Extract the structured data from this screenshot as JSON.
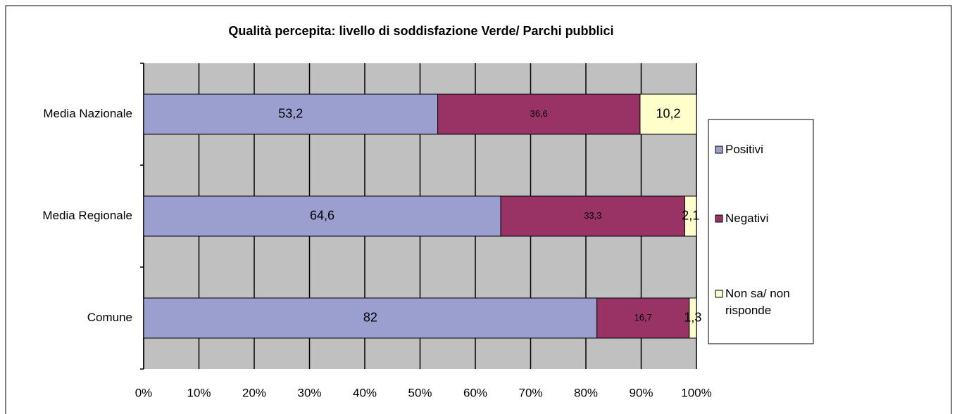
{
  "chart_data": {
    "type": "stacked-barh",
    "title": "Qualità percepita: livello di soddisfazione Verde/ Parchi pubblici",
    "categories": [
      "Media Nazionale",
      "Media Regionale",
      "Comune"
    ],
    "series": [
      {
        "name": "Positivi",
        "color": "#9a9fd0",
        "values": [
          53.2,
          64.6,
          82
        ],
        "value_labels": [
          "53,2",
          "64,6",
          "82"
        ]
      },
      {
        "name": "Negativi",
        "color": "#993366",
        "values": [
          36.6,
          33.3,
          16.7
        ],
        "value_labels": [
          "36,6",
          "33,3",
          "16,7"
        ]
      },
      {
        "name": "Non sa/ non risponde",
        "color": "#ffffcc",
        "values": [
          10.2,
          2.1,
          1.3
        ],
        "value_labels": [
          "10,2",
          "2,1",
          "1,3"
        ]
      }
    ],
    "xlim": [
      0,
      100
    ],
    "xticks": [
      {
        "value": 0,
        "label": "0%"
      },
      {
        "value": 10,
        "label": "10%"
      },
      {
        "value": 20,
        "label": "20%"
      },
      {
        "value": 30,
        "label": "30%"
      },
      {
        "value": 40,
        "label": "40%"
      },
      {
        "value": 50,
        "label": "50%"
      },
      {
        "value": 60,
        "label": "60%"
      },
      {
        "value": 70,
        "label": "70%"
      },
      {
        "value": 80,
        "label": "80%"
      },
      {
        "value": 90,
        "label": "90%"
      },
      {
        "value": 100,
        "label": "100%"
      }
    ],
    "grid": true,
    "legend": "right"
  }
}
